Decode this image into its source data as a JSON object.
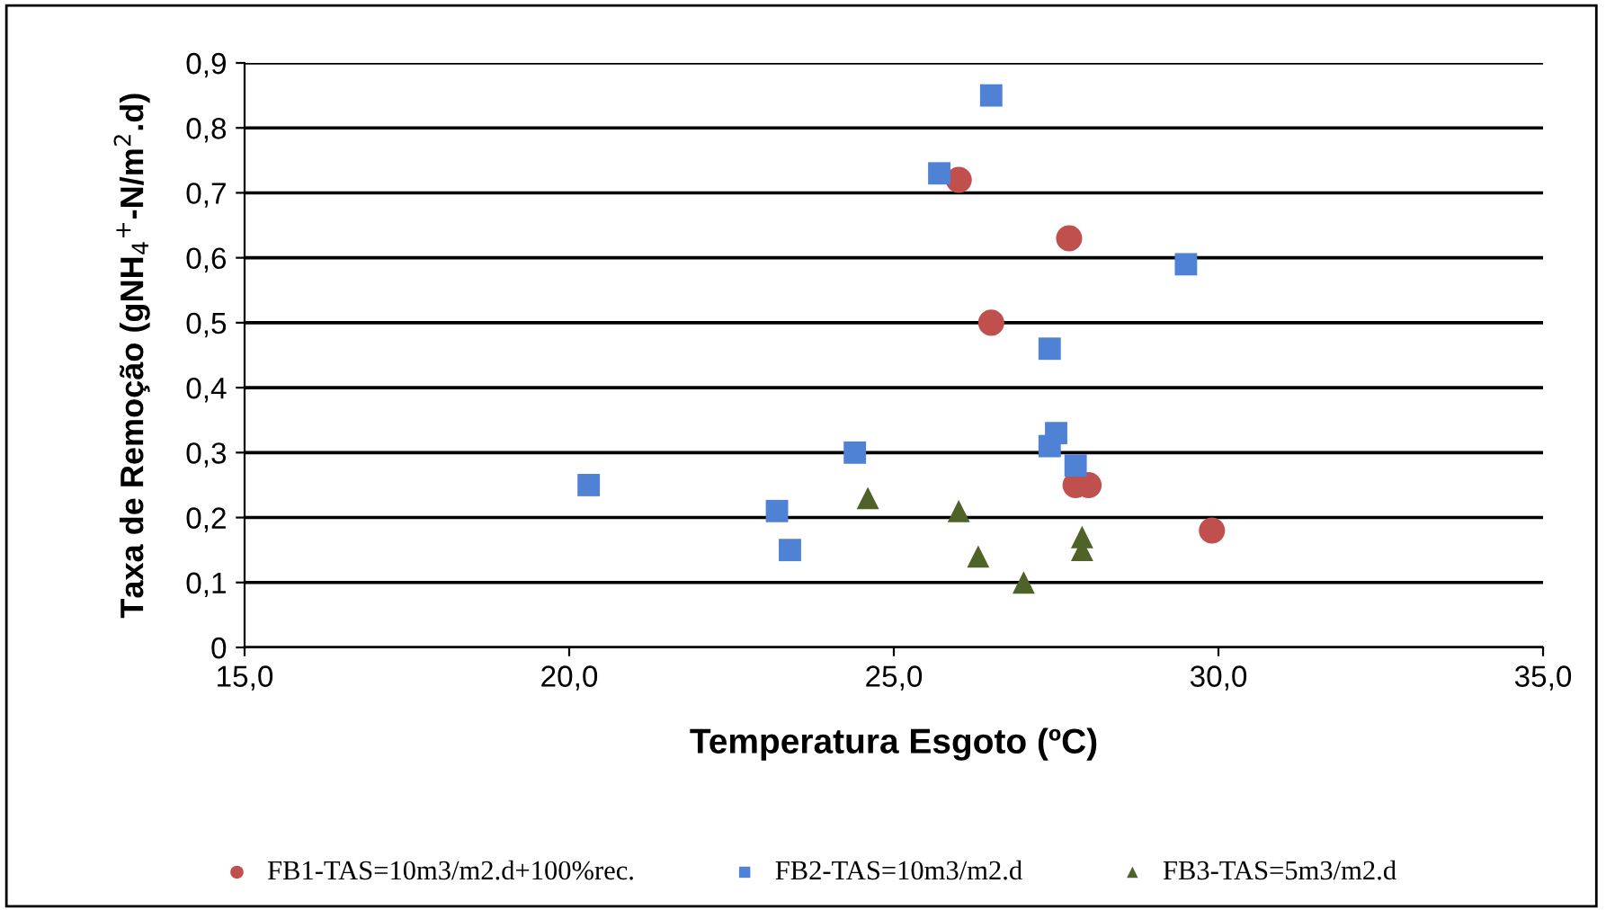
{
  "chart_data": {
    "type": "scatter",
    "xlabel": "Temperatura Esgoto (ºC)",
    "ylabel": "Taxa de Remoção (gNH$_{4}$$^{+}$-N/m$^{2}$.d)",
    "xlim": [
      15,
      35
    ],
    "xticks": [
      {
        "value": 15,
        "label": "15,0"
      },
      {
        "value": 20,
        "label": "20,0"
      },
      {
        "value": 25,
        "label": "25,0"
      },
      {
        "value": 30,
        "label": "30,0"
      },
      {
        "value": 35,
        "label": "35,0"
      }
    ],
    "ylim": [
      0,
      0.9
    ],
    "yticks": [
      {
        "value": 0,
        "label": "0"
      },
      {
        "value": 0.1,
        "label": "0,1"
      },
      {
        "value": 0.2,
        "label": "0,2"
      },
      {
        "value": 0.3,
        "label": "0,3"
      },
      {
        "value": 0.4,
        "label": "0,4"
      },
      {
        "value": 0.5,
        "label": "0,5"
      },
      {
        "value": 0.6,
        "label": "0,6"
      },
      {
        "value": 0.7,
        "label": "0,7"
      },
      {
        "value": 0.8,
        "label": "0,8"
      },
      {
        "value": 0.9,
        "label": "0,9"
      }
    ],
    "grid": "y",
    "legend": "bottom",
    "series": [
      {
        "name": "FB1-TAS=10m3/m2.d+100%rec.",
        "color": "#c0504d",
        "marker": "circle",
        "x": [
          26.0,
          27.7,
          26.5,
          27.8,
          28.0,
          29.9
        ],
        "values": [
          0.72,
          0.63,
          0.5,
          0.25,
          0.25,
          0.18
        ]
      },
      {
        "name": "FB2-TAS=10m3/m2.d",
        "color": "#4f81d4",
        "marker": "square",
        "x": [
          26.5,
          25.7,
          29.5,
          27.4,
          27.5,
          27.4,
          27.8,
          24.4,
          20.3,
          23.2,
          23.4
        ],
        "values": [
          0.85,
          0.73,
          0.59,
          0.46,
          0.33,
          0.31,
          0.28,
          0.3,
          0.25,
          0.21,
          0.15
        ]
      },
      {
        "name": "FB3-TAS=5m3/m2.d",
        "color": "#4f6228",
        "marker": "triangle",
        "x": [
          24.6,
          26.0,
          26.3,
          27.0,
          27.9,
          27.9
        ],
        "values": [
          0.23,
          0.21,
          0.14,
          0.1,
          0.17,
          0.15
        ]
      }
    ]
  }
}
